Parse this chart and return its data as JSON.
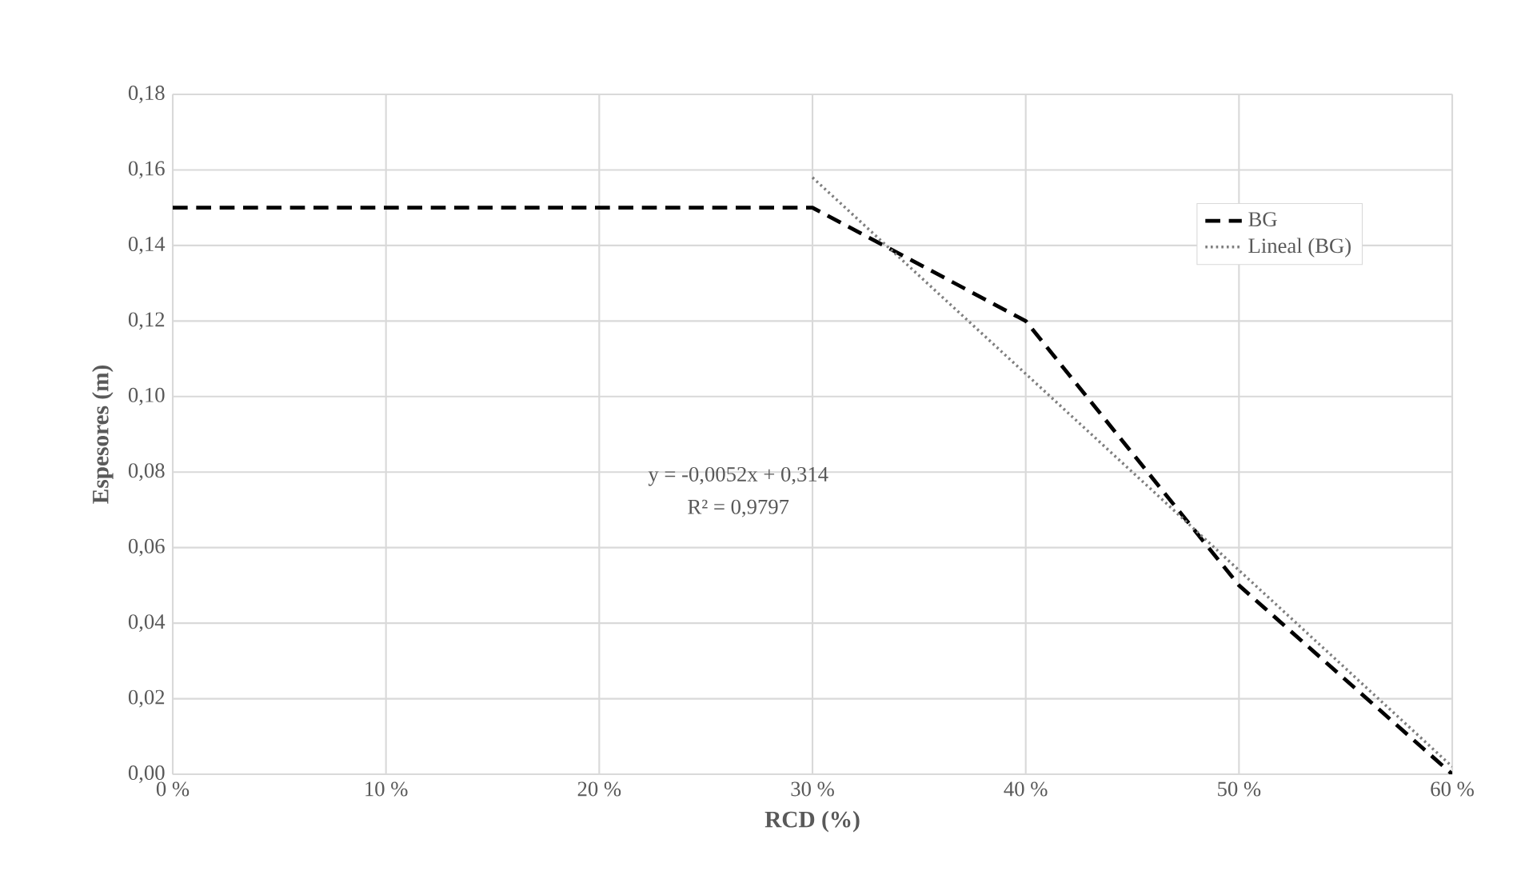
{
  "chart_data": {
    "type": "line",
    "xlabel": "RCD (%)",
    "ylabel": "Espesores (m)",
    "xlim": [
      0,
      60
    ],
    "ylim": [
      0,
      0.18
    ],
    "xticks": [
      {
        "value": 0,
        "label": "0 %"
      },
      {
        "value": 10,
        "label": "10 %"
      },
      {
        "value": 20,
        "label": "20 %"
      },
      {
        "value": 30,
        "label": "30 %"
      },
      {
        "value": 40,
        "label": "40 %"
      },
      {
        "value": 50,
        "label": "50 %"
      },
      {
        "value": 60,
        "label": "60 %"
      }
    ],
    "yticks": [
      {
        "value": 0,
        "label": "0,00"
      },
      {
        "value": 0.02,
        "label": "0,02"
      },
      {
        "value": 0.04,
        "label": "0,04"
      },
      {
        "value": 0.06,
        "label": "0,06"
      },
      {
        "value": 0.08,
        "label": "0,08"
      },
      {
        "value": 0.1,
        "label": "0,10"
      },
      {
        "value": 0.12,
        "label": "0,12"
      },
      {
        "value": 0.14,
        "label": "0,14"
      },
      {
        "value": 0.16,
        "label": "0,16"
      },
      {
        "value": 0.18,
        "label": "0,18"
      }
    ],
    "grid": true,
    "legend": "top right",
    "series": [
      {
        "name": "BG",
        "color": "#000000",
        "line_style": "dashed",
        "x": [
          0,
          30,
          40,
          50,
          60
        ],
        "values": [
          0.15,
          0.15,
          0.12,
          0.05,
          0.0
        ]
      },
      {
        "name": "Lineal (BG)",
        "color": "#7f7f7f",
        "line_style": "dotted",
        "x": [
          30,
          60
        ],
        "values": [
          0.158,
          0.002
        ]
      }
    ],
    "annotations": [
      "y = -0,0052x + 0,314",
      "R² = 0,9797"
    ]
  }
}
